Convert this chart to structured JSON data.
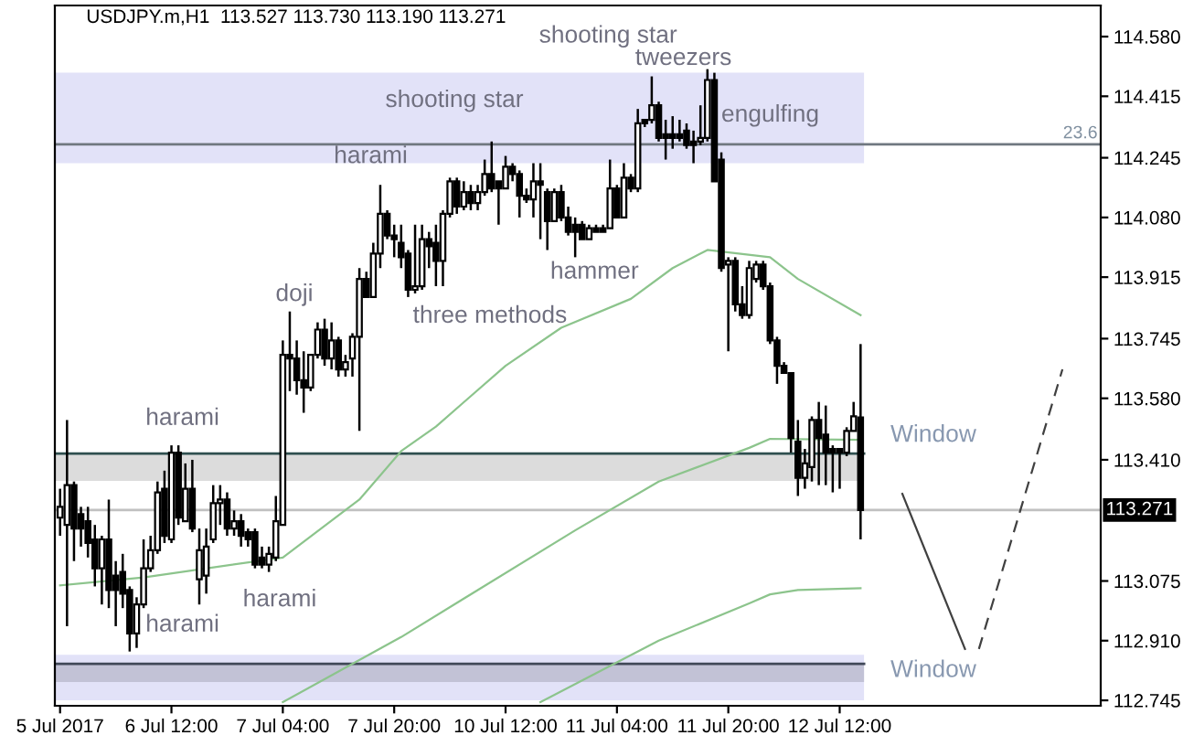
{
  "chart_data": {
    "type": "candlestick",
    "title": "USDJPY.m,H1  113.527 113.730 113.190 113.271",
    "categories": [
      "5 Jul 2017",
      null,
      null,
      null,
      null,
      null,
      null,
      null,
      null,
      null,
      null,
      null,
      null,
      null,
      null,
      null,
      "6 Jul 12:00",
      null,
      null,
      null,
      null,
      null,
      null,
      null,
      null,
      null,
      null,
      null,
      null,
      null,
      null,
      null,
      "7 Jul 04:00",
      null,
      null,
      null,
      null,
      null,
      null,
      null,
      null,
      null,
      null,
      null,
      null,
      null,
      null,
      null,
      "7 Jul 20:00",
      null,
      null,
      null,
      null,
      null,
      null,
      null,
      null,
      null,
      null,
      null,
      null,
      null,
      null,
      null,
      "10 Jul 12:00",
      null,
      null,
      null,
      null,
      null,
      null,
      null,
      null,
      null,
      null,
      null,
      null,
      null,
      null,
      null,
      "11 Jul 04:00",
      null,
      null,
      null,
      null,
      null,
      null,
      null,
      null,
      null,
      null,
      null,
      null,
      null,
      null,
      null,
      "11 Jul 20:00",
      null,
      null,
      null,
      null,
      null,
      null,
      null,
      null,
      null,
      null,
      null,
      null,
      null,
      null,
      null,
      "12 Jul 12:00",
      null,
      null,
      null,
      null,
      null,
      null,
      null,
      null,
      null,
      null,
      null,
      null,
      null,
      null,
      null,
      null,
      null,
      null,
      null,
      null,
      null,
      null,
      null,
      null,
      null,
      null,
      null,
      null,
      null,
      null,
      null,
      null,
      null,
      null,
      null,
      null,
      null
    ],
    "ohlc": [
      [
        113.25,
        113.33,
        113.2,
        113.28
      ],
      [
        113.23,
        113.52,
        112.95,
        113.34
      ],
      [
        113.34,
        113.35,
        113.13,
        113.22
      ],
      [
        113.26,
        113.28,
        113.17,
        113.22
      ],
      [
        113.24,
        113.28,
        113.14,
        113.18
      ],
      [
        113.19,
        113.23,
        113.06,
        113.11
      ],
      [
        113.11,
        113.2,
        113.01,
        113.19
      ],
      [
        113.19,
        113.3,
        113.0,
        113.05
      ],
      [
        113.09,
        113.13,
        112.95,
        113.05
      ],
      [
        113.1,
        113.15,
        113.0,
        113.04
      ],
      [
        113.05,
        113.06,
        112.88,
        112.93
      ],
      [
        112.93,
        113.03,
        112.89,
        113.01
      ],
      [
        113.01,
        113.19,
        113.0,
        113.11
      ],
      [
        113.11,
        113.2,
        113.1,
        113.16
      ],
      [
        113.16,
        113.35,
        113.15,
        113.32
      ],
      [
        113.33,
        113.38,
        113.18,
        113.2
      ],
      [
        113.19,
        113.45,
        113.18,
        113.43
      ],
      [
        113.43,
        113.45,
        113.23,
        113.25
      ],
      [
        113.24,
        113.4,
        113.24,
        113.33
      ],
      [
        113.33,
        113.41,
        113.21,
        113.22
      ],
      [
        113.08,
        113.22,
        113.01,
        113.16
      ],
      [
        113.09,
        113.22,
        113.04,
        113.17
      ],
      [
        113.19,
        113.34,
        113.18,
        113.29
      ],
      [
        113.29,
        113.34,
        113.23,
        113.3
      ],
      [
        113.3,
        113.32,
        113.2,
        113.22
      ],
      [
        113.22,
        113.27,
        113.2,
        113.24
      ],
      [
        113.24,
        113.26,
        113.17,
        113.2
      ],
      [
        113.21,
        113.22,
        113.17,
        113.19
      ],
      [
        113.21,
        113.22,
        113.11,
        113.12
      ],
      [
        113.14,
        113.17,
        113.11,
        113.12
      ],
      [
        113.12,
        113.17,
        113.1,
        113.15
      ],
      [
        113.14,
        113.31,
        113.13,
        113.24
      ],
      [
        113.23,
        113.74,
        113.23,
        113.7
      ],
      [
        113.7,
        113.82,
        113.6,
        113.69
      ],
      [
        113.69,
        113.74,
        113.59,
        113.63
      ],
      [
        113.63,
        113.71,
        113.54,
        113.61
      ],
      [
        113.61,
        113.7,
        113.6,
        113.7
      ],
      [
        113.7,
        113.79,
        113.69,
        113.77
      ],
      [
        113.77,
        113.8,
        113.67,
        113.69
      ],
      [
        113.69,
        113.79,
        113.66,
        113.74
      ],
      [
        113.74,
        113.75,
        113.64,
        113.66
      ],
      [
        113.66,
        113.7,
        113.64,
        113.68
      ],
      [
        113.69,
        113.76,
        113.64,
        113.75
      ],
      [
        113.75,
        113.94,
        113.49,
        113.91
      ],
      [
        113.91,
        113.93,
        113.86,
        113.86
      ],
      [
        113.86,
        114.01,
        113.86,
        113.98
      ],
      [
        113.98,
        114.17,
        113.94,
        114.09
      ],
      [
        114.09,
        114.1,
        114.02,
        114.03
      ],
      [
        114.03,
        114.06,
        113.97,
        114.02
      ],
      [
        114.01,
        114.06,
        113.94,
        113.97
      ],
      [
        113.98,
        113.99,
        113.86,
        113.88
      ],
      [
        113.88,
        114.06,
        113.87,
        113.89
      ],
      [
        113.89,
        114.06,
        113.88,
        114.02
      ],
      [
        114.02,
        114.04,
        113.94,
        114.0
      ],
      [
        114.01,
        114.06,
        113.89,
        113.96
      ],
      [
        113.96,
        114.1,
        113.89,
        114.09
      ],
      [
        114.09,
        114.19,
        114.08,
        114.18
      ],
      [
        114.18,
        114.19,
        114.09,
        114.11
      ],
      [
        114.11,
        114.18,
        114.1,
        114.15
      ],
      [
        114.15,
        114.17,
        114.1,
        114.12
      ],
      [
        114.12,
        114.17,
        114.1,
        114.15
      ],
      [
        114.15,
        114.24,
        114.14,
        114.2
      ],
      [
        114.2,
        114.29,
        114.15,
        114.16
      ],
      [
        114.18,
        114.18,
        114.06,
        114.16
      ],
      [
        114.16,
        114.25,
        114.16,
        114.22
      ],
      [
        114.22,
        114.23,
        114.18,
        114.2
      ],
      [
        114.2,
        114.21,
        114.08,
        114.14
      ],
      [
        114.14,
        114.16,
        114.12,
        114.13
      ],
      [
        114.13,
        114.23,
        114.08,
        114.18
      ],
      [
        114.18,
        114.23,
        114.02,
        114.17
      ],
      [
        114.15,
        114.16,
        113.99,
        114.07
      ],
      [
        114.07,
        114.16,
        114.07,
        114.15
      ],
      [
        114.15,
        114.17,
        114.07,
        114.08
      ],
      [
        114.08,
        114.11,
        114.03,
        114.04
      ],
      [
        114.06,
        114.08,
        113.97,
        114.04
      ],
      [
        114.06,
        114.07,
        114.02,
        114.02
      ],
      [
        114.02,
        114.06,
        114.02,
        114.05
      ],
      [
        114.05,
        114.06,
        114.04,
        114.04
      ],
      [
        114.05,
        114.06,
        114.04,
        114.04
      ],
      [
        114.05,
        114.24,
        114.05,
        114.16
      ],
      [
        114.16,
        114.17,
        114.08,
        114.08
      ],
      [
        114.08,
        114.23,
        114.08,
        114.19
      ],
      [
        114.19,
        114.2,
        114.15,
        114.16
      ],
      [
        114.16,
        114.38,
        114.15,
        114.34
      ],
      [
        114.35,
        114.35,
        114.33,
        114.34
      ],
      [
        114.35,
        114.47,
        114.34,
        114.39
      ],
      [
        114.39,
        114.4,
        114.29,
        114.3
      ],
      [
        114.31,
        114.35,
        114.24,
        114.3
      ],
      [
        114.31,
        114.36,
        114.27,
        114.3
      ],
      [
        114.31,
        114.35,
        114.29,
        114.3
      ],
      [
        114.32,
        114.34,
        114.27,
        114.28
      ],
      [
        114.29,
        114.32,
        114.23,
        114.28
      ],
      [
        114.29,
        114.39,
        114.28,
        114.3
      ],
      [
        114.3,
        114.49,
        114.29,
        114.46
      ],
      [
        114.46,
        114.48,
        114.18,
        114.18
      ],
      [
        114.24,
        114.26,
        113.93,
        113.94
      ],
      [
        113.95,
        113.97,
        113.71,
        113.96
      ],
      [
        113.96,
        113.97,
        113.82,
        113.84
      ],
      [
        113.84,
        113.89,
        113.8,
        113.81
      ],
      [
        113.81,
        113.96,
        113.8,
        113.94
      ],
      [
        113.91,
        113.96,
        113.9,
        113.95
      ],
      [
        113.95,
        113.96,
        113.88,
        113.89
      ],
      [
        113.89,
        113.9,
        113.73,
        113.74
      ],
      [
        113.74,
        113.75,
        113.62,
        113.67
      ],
      [
        113.67,
        113.68,
        113.65,
        113.65
      ],
      [
        113.65,
        113.65,
        113.43,
        113.47
      ],
      [
        113.46,
        113.52,
        113.31,
        113.36
      ],
      [
        113.36,
        113.44,
        113.33,
        113.4
      ],
      [
        113.39,
        113.53,
        113.35,
        113.52
      ],
      [
        113.52,
        113.57,
        113.34,
        113.47
      ],
      [
        113.48,
        113.56,
        113.34,
        113.43
      ],
      [
        113.44,
        113.45,
        113.32,
        113.43
      ],
      [
        113.44,
        113.44,
        113.33,
        113.43
      ],
      [
        113.43,
        113.5,
        113.42,
        113.49
      ],
      [
        113.49,
        113.57,
        113.49,
        113.53
      ],
      [
        113.527,
        113.73,
        113.19,
        113.271
      ],
      null,
      null,
      null,
      null,
      null,
      null,
      null,
      null,
      null,
      null,
      null,
      null,
      null,
      null,
      null,
      null,
      null,
      null,
      null,
      null,
      null,
      null,
      null,
      null,
      null,
      null,
      null,
      null,
      null,
      null,
      null,
      null,
      null,
      null
    ],
    "series": [
      {
        "type": "line",
        "color": "#8cc48c",
        "line_style": "solid",
        "values": [
          113.063,
          null,
          null,
          null,
          null,
          null,
          null,
          null,
          null,
          null,
          null,
          null,
          113.085,
          null,
          null,
          null,
          null,
          null,
          null,
          null,
          null,
          null,
          null,
          null,
          null,
          null,
          null,
          null,
          null,
          null,
          null,
          null,
          113.14,
          null,
          null,
          null,
          null,
          null,
          null,
          null,
          null,
          null,
          null,
          113.3,
          null,
          null,
          null,
          null,
          null,
          113.434,
          null,
          null,
          null,
          null,
          113.502,
          null,
          null,
          null,
          null,
          null,
          null,
          null,
          null,
          null,
          113.67,
          null,
          null,
          null,
          null,
          null,
          null,
          null,
          113.775,
          null,
          null,
          null,
          null,
          null,
          null,
          null,
          null,
          null,
          113.855,
          null,
          null,
          null,
          null,
          null,
          113.94,
          null,
          null,
          null,
          null,
          113.99,
          null,
          null,
          null,
          null,
          null,
          null,
          null,
          null,
          113.97,
          null,
          null,
          null,
          113.91,
          null,
          null,
          null,
          null,
          null,
          null,
          null,
          null,
          113.81,
          null,
          null,
          null,
          null,
          null,
          null,
          null,
          null,
          null,
          null,
          null,
          null,
          null,
          null,
          null,
          null,
          null,
          null,
          null,
          null,
          null,
          null,
          null,
          null,
          null,
          null,
          null,
          null,
          null,
          null,
          null,
          null,
          null,
          null
        ]
      },
      {
        "type": "line",
        "color": "#8cc48c",
        "line_style": "solid",
        "values": [
          null,
          null,
          null,
          null,
          null,
          null,
          null,
          null,
          null,
          null,
          null,
          null,
          null,
          null,
          null,
          null,
          null,
          null,
          null,
          null,
          null,
          null,
          null,
          null,
          null,
          null,
          null,
          null,
          null,
          null,
          null,
          null,
          112.74,
          null,
          null,
          null,
          null,
          null,
          null,
          null,
          null,
          null,
          null,
          null,
          null,
          null,
          null,
          null,
          null,
          112.92,
          null,
          null,
          null,
          null,
          null,
          null,
          null,
          null,
          null,
          null,
          null,
          null,
          null,
          null,
          null,
          null,
          null,
          null,
          null,
          null,
          null,
          null,
          null,
          null,
          113.215,
          null,
          null,
          null,
          null,
          null,
          null,
          null,
          null,
          null,
          null,
          null,
          113.35,
          null,
          null,
          null,
          null,
          null,
          null,
          null,
          null,
          null,
          null,
          null,
          null,
          113.443,
          null,
          null,
          113.468,
          null,
          null,
          null,
          null,
          null,
          null,
          null,
          null,
          null,
          null,
          null,
          null,
          113.465,
          null,
          null,
          null,
          null,
          null,
          null,
          null,
          null,
          null,
          null,
          null,
          null,
          null,
          null,
          null,
          null,
          null,
          null,
          null,
          null,
          null,
          null,
          null,
          null,
          null,
          null,
          null,
          null,
          null,
          null,
          null,
          null,
          null,
          null
        ]
      },
      {
        "type": "line",
        "color": "#8cc48c",
        "line_style": "solid",
        "values": [
          null,
          null,
          null,
          null,
          null,
          null,
          null,
          null,
          null,
          null,
          null,
          null,
          null,
          null,
          null,
          null,
          null,
          null,
          null,
          null,
          null,
          null,
          null,
          null,
          null,
          null,
          null,
          null,
          null,
          null,
          null,
          null,
          null,
          null,
          null,
          null,
          null,
          null,
          null,
          null,
          null,
          null,
          null,
          null,
          null,
          null,
          null,
          null,
          null,
          null,
          null,
          null,
          null,
          null,
          null,
          null,
          null,
          null,
          null,
          null,
          null,
          null,
          null,
          null,
          null,
          null,
          null,
          null,
          null,
          112.74,
          null,
          null,
          null,
          null,
          null,
          null,
          null,
          null,
          null,
          null,
          null,
          null,
          null,
          null,
          null,
          null,
          112.91,
          null,
          null,
          null,
          null,
          null,
          null,
          null,
          null,
          null,
          null,
          null,
          null,
          113.013,
          null,
          null,
          113.038,
          null,
          null,
          null,
          113.05,
          null,
          null,
          null,
          null,
          null,
          null,
          null,
          null,
          113.055,
          null,
          null,
          null,
          null,
          null,
          null,
          null,
          null,
          null,
          null,
          null,
          null,
          null,
          null,
          null,
          null,
          null,
          null,
          null,
          null,
          null,
          null,
          null,
          null,
          null,
          null,
          null,
          null,
          null,
          null,
          null,
          null,
          null,
          null
        ]
      },
      {
        "type": "line",
        "color": "#404040",
        "line_style": "solid",
        "values": [
          null,
          null,
          null,
          null,
          null,
          null,
          null,
          null,
          null,
          null,
          null,
          null,
          null,
          null,
          null,
          null,
          null,
          null,
          null,
          null,
          null,
          null,
          null,
          null,
          null,
          null,
          null,
          null,
          null,
          null,
          null,
          null,
          null,
          null,
          null,
          null,
          null,
          null,
          null,
          null,
          null,
          null,
          null,
          null,
          null,
          null,
          null,
          null,
          null,
          null,
          null,
          null,
          null,
          null,
          null,
          null,
          null,
          null,
          null,
          null,
          null,
          null,
          null,
          null,
          null,
          null,
          null,
          null,
          null,
          null,
          null,
          null,
          null,
          null,
          null,
          null,
          null,
          null,
          null,
          null,
          null,
          null,
          null,
          null,
          null,
          null,
          null,
          null,
          null,
          null,
          null,
          null,
          null,
          null,
          null,
          null,
          null,
          null,
          null,
          null,
          null,
          null,
          null,
          null,
          null,
          null,
          null,
          null,
          null,
          null,
          null,
          null,
          null,
          null,
          null,
          null,
          null,
          null,
          null,
          null,
          null,
          113.316,
          null,
          null,
          null,
          null,
          null,
          null,
          null,
          null,
          112.887,
          null,
          null,
          null,
          null,
          null,
          null,
          null,
          null,
          null,
          null,
          null,
          null,
          null,
          null,
          null,
          null,
          null,
          null,
          null
        ]
      },
      {
        "type": "line",
        "color": "#404040",
        "line_style": "dashed",
        "values": [
          null,
          null,
          null,
          null,
          null,
          null,
          null,
          null,
          null,
          null,
          null,
          null,
          null,
          null,
          null,
          null,
          null,
          null,
          null,
          null,
          null,
          null,
          null,
          null,
          null,
          null,
          null,
          null,
          null,
          null,
          null,
          null,
          null,
          null,
          null,
          null,
          null,
          null,
          null,
          null,
          null,
          null,
          null,
          null,
          null,
          null,
          null,
          null,
          null,
          null,
          null,
          null,
          null,
          null,
          null,
          null,
          null,
          null,
          null,
          null,
          null,
          null,
          null,
          null,
          null,
          null,
          null,
          null,
          null,
          null,
          null,
          null,
          null,
          null,
          null,
          null,
          null,
          null,
          null,
          null,
          null,
          null,
          null,
          null,
          null,
          null,
          null,
          null,
          null,
          null,
          null,
          null,
          null,
          null,
          null,
          null,
          null,
          null,
          null,
          null,
          null,
          null,
          null,
          null,
          null,
          null,
          null,
          null,
          null,
          null,
          null,
          null,
          null,
          null,
          null,
          null,
          null,
          null,
          null,
          null,
          null,
          null,
          null,
          null,
          null,
          null,
          null,
          null,
          null,
          null,
          null,
          null,
          112.887,
          null,
          null,
          null,
          null,
          null,
          null,
          null,
          null,
          null,
          null,
          null,
          113.66,
          null,
          null,
          null,
          null,
          null
        ]
      }
    ],
    "bands": [
      {
        "axis": "y",
        "from": 114.23,
        "to": 114.48,
        "color": "#e2e2f8"
      },
      {
        "axis": "y",
        "from": 113.352,
        "to": 113.427,
        "color": "#dcdcdc"
      },
      {
        "axis": "y",
        "from": 112.745,
        "to": 112.871,
        "color": "#e2e2f8"
      },
      {
        "axis": "y",
        "from": 112.796,
        "to": 112.846,
        "color": "#c2c2d6"
      }
    ],
    "ref_lines": [
      {
        "axis": "y",
        "value": 114.282,
        "color": "#707880"
      },
      {
        "axis": "y",
        "value": 113.427,
        "color": "#2f4f4f"
      },
      {
        "axis": "y",
        "value": 112.846,
        "color": "#404858"
      },
      {
        "axis": "y",
        "value": 113.271,
        "label": "113.271",
        "color": "#c0c0c0"
      }
    ],
    "annotations": [
      "harami",
      "harami",
      "harami",
      "doji",
      "harami",
      "shooting star",
      "three methods",
      "hammer",
      "shooting star",
      "tweezers",
      "engulfing",
      "Window",
      "Window",
      "23.6"
    ],
    "ylim": [
      112.73,
      114.666
    ],
    "yticks": [
      {
        "value": 114.58,
        "label": "114.580"
      },
      114.415,
      114.245,
      {
        "value": 114.08,
        "label": "114.080"
      },
      113.915,
      113.745,
      {
        "value": 113.58,
        "label": "113.580"
      },
      {
        "value": 113.41,
        "label": "113.410"
      },
      113.075,
      {
        "value": 112.91,
        "label": "112.910"
      },
      112.745
    ]
  }
}
